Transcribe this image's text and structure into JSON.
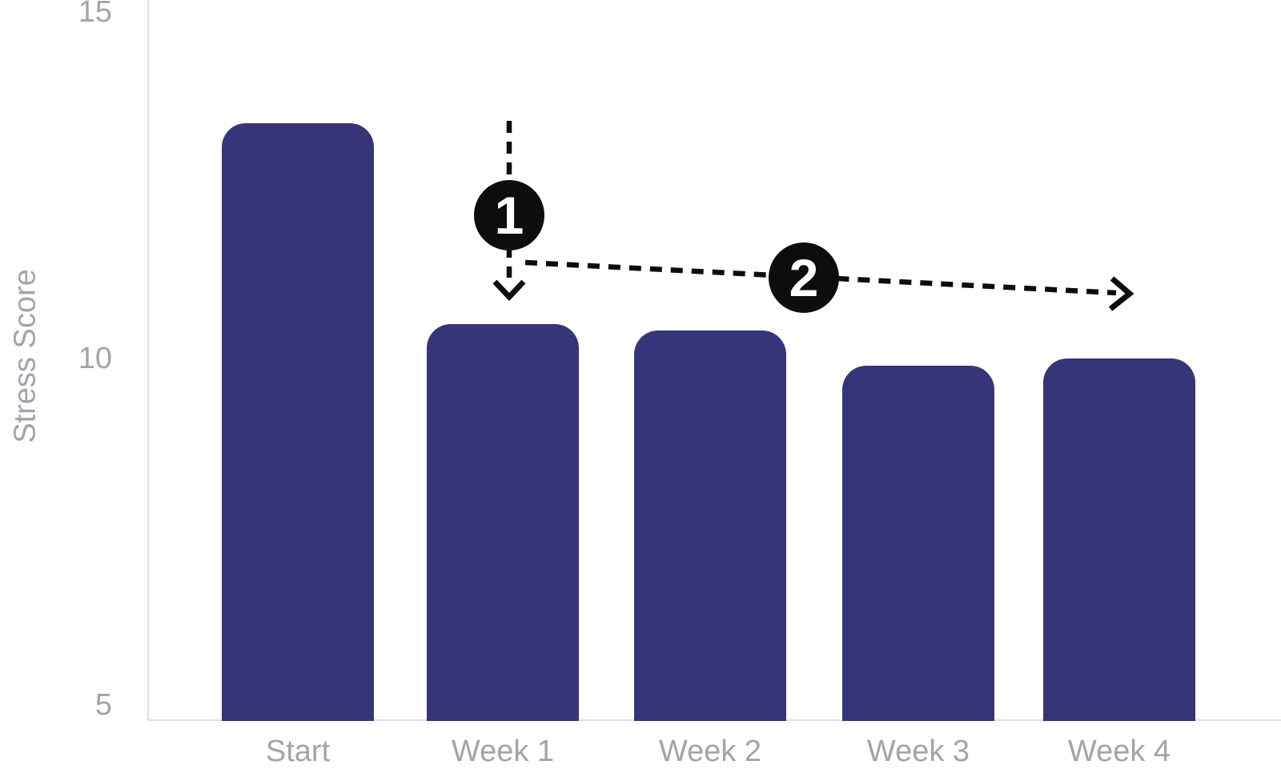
{
  "chart_data": {
    "type": "bar",
    "title": "",
    "xlabel": "",
    "ylabel": "Stress Score",
    "categories": [
      "Start",
      "Week 1",
      "Week 2",
      "Week 3",
      "Week 4"
    ],
    "values": [
      13.4,
      10.5,
      10.4,
      9.9,
      10.0
    ],
    "yticks": [
      15,
      10,
      5
    ],
    "ylim": [
      4.8,
      15.2
    ],
    "grid": false,
    "legend": false,
    "bar_color": "#37357a",
    "axis_color": "#e0deea",
    "tick_label_color": "#a2a3ad",
    "annotation_color": "#0d0d0d",
    "annotations": [
      {
        "label": "1",
        "icon": "arrow-down-dashed"
      },
      {
        "label": "2",
        "icon": "arrow-right-dashed"
      }
    ]
  }
}
